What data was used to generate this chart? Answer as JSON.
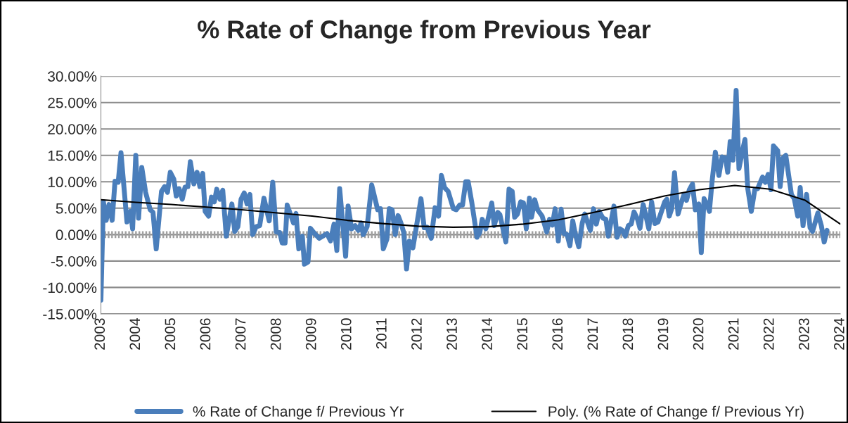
{
  "chart_data": {
    "type": "line",
    "title": "% Rate of Change from Previous Year",
    "x": [
      2003.0,
      2003.07,
      2003.15,
      2003.23,
      2003.32,
      2003.4,
      2003.49,
      2003.57,
      2003.74,
      2003.84,
      2003.9,
      2003.99,
      2004.07,
      2004.16,
      2004.27,
      2004.4,
      2004.48,
      2004.57,
      2004.72,
      2004.81,
      2004.89,
      2004.97,
      2005.07,
      2005.14,
      2005.22,
      2005.31,
      2005.39,
      2005.47,
      2005.54,
      2005.64,
      2005.73,
      2005.81,
      2005.89,
      2005.96,
      2006.06,
      2006.14,
      2006.22,
      2006.29,
      2006.38,
      2006.46,
      2006.56,
      2006.72,
      2006.8,
      2006.89,
      2006.98,
      2007.07,
      2007.15,
      2007.23,
      2007.31,
      2007.41,
      2007.51,
      2007.63,
      2007.78,
      2007.88,
      2007.98,
      2008.08,
      2008.15,
      2008.23,
      2008.29,
      2008.47,
      2008.54,
      2008.62,
      2008.72,
      2008.78,
      2008.88,
      2008.95,
      2009.07,
      2009.2,
      2009.42,
      2009.52,
      2009.62,
      2009.7,
      2009.78,
      2009.95,
      2010.02,
      2010.12,
      2010.22,
      2010.31,
      2010.39,
      2010.45,
      2010.56,
      2010.69,
      2010.86,
      2010.94,
      2011.02,
      2011.12,
      2011.19,
      2011.27,
      2011.36,
      2011.44,
      2011.52,
      2011.6,
      2011.68,
      2011.76,
      2011.86,
      2012.09,
      2012.18,
      2012.26,
      2012.38,
      2012.49,
      2012.59,
      2012.67,
      2012.76,
      2012.86,
      2013.01,
      2013.09,
      2013.19,
      2013.27,
      2013.36,
      2013.43,
      2013.53,
      2013.68,
      2013.76,
      2013.83,
      2013.93,
      2014.1,
      2014.17,
      2014.27,
      2014.33,
      2014.5,
      2014.59,
      2014.68,
      2014.75,
      2014.83,
      2014.92,
      2015.0,
      2015.08,
      2015.17,
      2015.23,
      2015.32,
      2015.4,
      2015.53,
      2015.66,
      2015.74,
      2015.82,
      2015.9,
      2015.99,
      2016.07,
      2016.15,
      2016.24,
      2016.32,
      2016.4,
      2016.47,
      2016.57,
      2016.67,
      2016.74,
      2016.9,
      2016.99,
      2017.07,
      2017.15,
      2017.26,
      2017.34,
      2017.41,
      2017.57,
      2017.66,
      2017.74,
      2017.81,
      2017.89,
      2017.98,
      2018.06,
      2018.14,
      2018.24,
      2018.31,
      2018.4,
      2018.48,
      2018.56,
      2018.64,
      2018.73,
      2018.82,
      2018.91,
      2019.01,
      2019.07,
      2019.14,
      2019.21,
      2019.29,
      2019.39,
      2019.48,
      2019.56,
      2019.63,
      2019.71,
      2019.8,
      2019.88,
      2019.98,
      2020.05,
      2020.13,
      2020.21,
      2020.28,
      2020.36,
      2020.45,
      2020.55,
      2020.64,
      2020.74,
      2020.8,
      2020.87,
      2020.95,
      2021.04,
      2021.12,
      2021.2,
      2021.29,
      2021.37,
      2021.47,
      2021.57,
      2021.65,
      2021.79,
      2021.87,
      2021.95,
      2022.03,
      2022.1,
      2022.22,
      2022.29,
      2022.37,
      2022.45,
      2022.61,
      2022.69,
      2022.79,
      2022.86,
      2022.94,
      2023.04,
      2023.14,
      2023.21,
      2023.36,
      2023.46,
      2023.54,
      2023.62
    ],
    "series": [
      {
        "name": "% Rate of Change f/ Previous Yr",
        "color": "#4a7ebb",
        "values": [
          -12.4,
          6.2,
          2.7,
          5.7,
          2.7,
          10.1,
          9.9,
          15.5,
          2.4,
          4.4,
          1.1,
          15.0,
          3.1,
          12.7,
          8.0,
          4.7,
          4.2,
          -2.7,
          8.2,
          9.1,
          8.0,
          11.8,
          10.5,
          7.3,
          8.7,
          6.7,
          9.0,
          9.1,
          13.8,
          9.6,
          11.8,
          9.1,
          11.6,
          4.4,
          3.5,
          7.1,
          6.2,
          8.6,
          6.7,
          8.4,
          -0.3,
          5.8,
          0.6,
          1.5,
          6.7,
          7.9,
          5.8,
          7.6,
          0.0,
          1.5,
          1.7,
          6.9,
          2.6,
          9.9,
          0.5,
          0.4,
          -1.6,
          -1.6,
          5.6,
          2.2,
          4.0,
          -2.7,
          -0.3,
          -5.6,
          -5.2,
          1.2,
          0.2,
          -0.7,
          0.2,
          -1.2,
          2.0,
          -3.0,
          8.7,
          -4.1,
          5.4,
          1.1,
          1.7,
          0.8,
          2.2,
          0.0,
          1.5,
          9.4,
          4.7,
          4.9,
          -2.7,
          -0.9,
          4.9,
          4.7,
          0.0,
          3.6,
          2.2,
          0.4,
          -6.5,
          -1.2,
          -2.5,
          6.8,
          1.3,
          1.4,
          -0.7,
          5.1,
          3.5,
          11.2,
          8.9,
          8.2,
          4.9,
          4.7,
          5.6,
          5.6,
          10.0,
          10.0,
          6.2,
          -0.5,
          0.4,
          2.9,
          1.1,
          6.0,
          1.7,
          4.2,
          3.8,
          -1.4,
          8.6,
          8.2,
          3.3,
          3.9,
          6.2,
          6.0,
          1.1,
          6.9,
          3.3,
          6.6,
          4.7,
          3.5,
          0.5,
          2.9,
          1.8,
          4.9,
          -1.2,
          4.8,
          0.2,
          0.0,
          -2.1,
          2.6,
          0.2,
          -2.3,
          2.2,
          3.9,
          0.8,
          4.9,
          2.0,
          4.4,
          3.1,
          2.9,
          -0.3,
          5.4,
          -0.5,
          1.1,
          0.8,
          -0.3,
          1.7,
          2.0,
          4.3,
          2.9,
          1.2,
          5.7,
          3.5,
          1.1,
          6.2,
          2.1,
          2.4,
          4.2,
          6.2,
          6.7,
          3.5,
          4.9,
          11.7,
          3.9,
          6.0,
          7.6,
          6.5,
          8.5,
          9.6,
          4.7,
          5.8,
          -3.4,
          6.8,
          5.8,
          4.4,
          10.3,
          15.6,
          11.2,
          14.7,
          14.5,
          11.8,
          17.6,
          14.1,
          27.3,
          12.5,
          15.2,
          18.0,
          8.7,
          4.4,
          8.5,
          8.7,
          10.9,
          9.9,
          11.4,
          8.5,
          16.8,
          15.9,
          9.1,
          14.5,
          15.0,
          7.6,
          6.8,
          3.5,
          8.9,
          1.7,
          7.6,
          1.3,
          0.6,
          4.1,
          1.7,
          -1.4,
          0.8
        ]
      },
      {
        "name": "Poly. (% Rate of Change f/ Previous Yr)",
        "color": "#000000",
        "x": [
          2003,
          2004,
          2005,
          2006,
          2007,
          2008,
          2009,
          2010,
          2011,
          2012,
          2013,
          2014,
          2015,
          2016,
          2017,
          2018,
          2019,
          2020,
          2021,
          2022,
          2023,
          2024
        ],
        "values": [
          6.6,
          6.1,
          5.7,
          5.2,
          4.7,
          4.1,
          3.5,
          2.7,
          2.1,
          1.6,
          1.4,
          1.5,
          2.0,
          2.8,
          4.2,
          5.7,
          7.3,
          8.5,
          9.3,
          8.6,
          6.5,
          2.0
        ]
      }
    ],
    "xlim": [
      2003,
      2024
    ],
    "xticks": [
      2003,
      2004,
      2005,
      2006,
      2007,
      2008,
      2009,
      2010,
      2011,
      2012,
      2013,
      2014,
      2015,
      2016,
      2017,
      2018,
      2019,
      2020,
      2021,
      2022,
      2023,
      2024
    ],
    "ylim": [
      -15,
      30
    ],
    "yticks": [
      {
        "value": -15,
        "label": "-15.00%"
      },
      {
        "value": -10,
        "label": "-10.00%"
      },
      {
        "value": -5,
        "label": "-5.00%"
      },
      {
        "value": 0,
        "label": "0.00%"
      },
      {
        "value": 5,
        "label": "5.00%"
      },
      {
        "value": 10,
        "label": "10.00%"
      },
      {
        "value": 15,
        "label": "15.00%"
      },
      {
        "value": 20,
        "label": "20.00%"
      },
      {
        "value": 25,
        "label": "25.00%"
      },
      {
        "value": 30,
        "label": "30.00%"
      }
    ],
    "ref_lines": [
      {
        "axis": "y",
        "value": 0,
        "color": "#a0a0a0"
      }
    ],
    "grid": "y",
    "legend": "bottom",
    "marker": "none",
    "line_style": "solid"
  }
}
